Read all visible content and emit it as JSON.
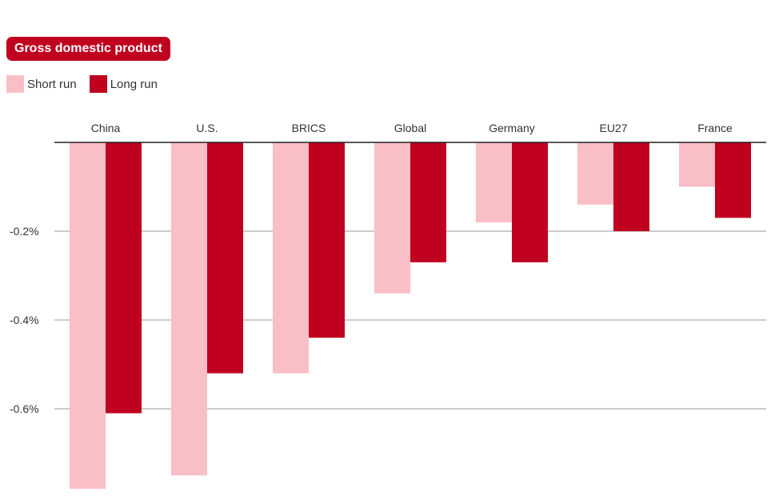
{
  "chart_data": {
    "type": "bar",
    "title": "Gross domestic product",
    "categories": [
      "China",
      "U.S.",
      "BRICS",
      "Global",
      "Germany",
      "EU27",
      "France"
    ],
    "series": [
      {
        "name": "Short run",
        "color": "#f9bfc6",
        "values": [
          -0.78,
          -0.75,
          -0.52,
          -0.34,
          -0.18,
          -0.14,
          -0.1
        ]
      },
      {
        "name": "Long run",
        "color": "#c0001f",
        "values": [
          -0.61,
          -0.52,
          -0.44,
          -0.27,
          -0.27,
          -0.2,
          -0.17
        ]
      }
    ],
    "yticks": [
      {
        "value": -0.2,
        "label": "-0.2%"
      },
      {
        "value": -0.4,
        "label": "-0.4%"
      },
      {
        "value": -0.6,
        "label": "-0.6%"
      }
    ],
    "ylim": [
      -0.8,
      0
    ],
    "xlabel": "",
    "ylabel": "",
    "grid": true,
    "category_labels_position": "top",
    "legend_position": "top-left"
  }
}
